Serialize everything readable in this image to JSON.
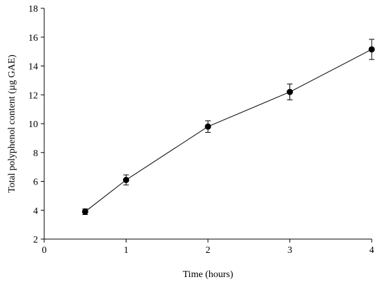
{
  "chart_data": {
    "type": "line",
    "xlabel": "Time (hours)",
    "ylabel": "Total polyphenol content (µg GAE)",
    "xlim": [
      0,
      4
    ],
    "ylim": [
      2,
      18
    ],
    "xticks": [
      0,
      1,
      2,
      3,
      4
    ],
    "yticks": [
      2,
      4,
      6,
      8,
      10,
      12,
      14,
      16,
      18
    ],
    "grid": false,
    "series": [
      {
        "x": [
          0.5,
          1,
          2,
          3,
          4
        ],
        "y": [
          3.9,
          6.1,
          9.8,
          12.2,
          15.15
        ],
        "error": [
          0.2,
          0.35,
          0.4,
          0.55,
          0.7
        ]
      }
    ],
    "colors": {
      "line": "#000000",
      "marker": "#000000"
    }
  }
}
